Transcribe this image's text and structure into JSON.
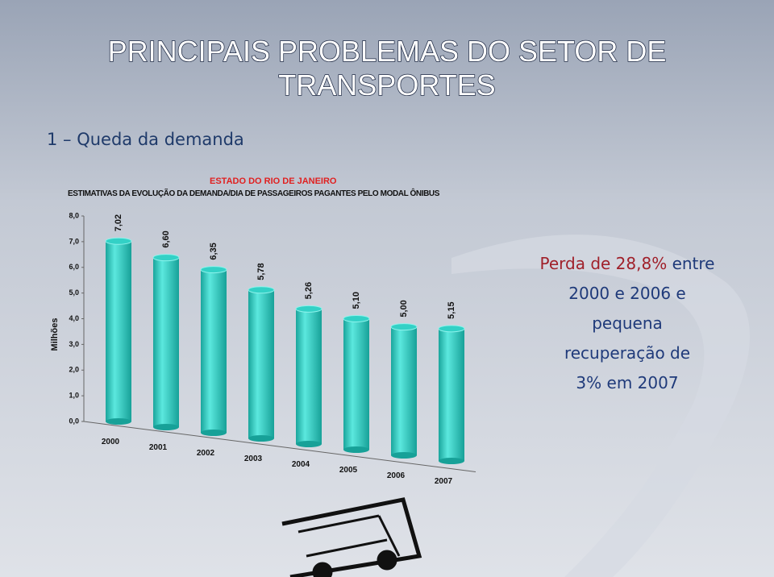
{
  "slide": {
    "title_lines": [
      "PRINCIPAIS PROBLEMAS DO SETOR DE",
      "TRANSPORTES"
    ],
    "subtitle": "1 – Queda da demanda",
    "note": {
      "highlight": "Perda de 28,8%",
      "lines": [
        "entre",
        "2000 e 2006 e",
        "pequena",
        "recuperação de",
        "3% em 2007"
      ]
    }
  },
  "chart_data": {
    "type": "bar",
    "title": "ESTADO DO RIO DE JANEIRO",
    "subtitle": "ESTIMATIVAS DA EVOLUÇÃO DA DEMANDA/DIA DE PASSAGEIROS PAGANTES PELO MODAL ÔNIBUS",
    "y_label": "Milhões",
    "categories": [
      "2000",
      "2001",
      "2002",
      "2003",
      "2004",
      "2005",
      "2006",
      "2007"
    ],
    "values": [
      7.02,
      6.6,
      6.35,
      5.78,
      5.26,
      5.1,
      5.0,
      5.15
    ],
    "value_labels": [
      "7,02",
      "6,60",
      "6,35",
      "5,78",
      "5,26",
      "5,10",
      "5,00",
      "5,15"
    ],
    "color": "#33d1c6",
    "ylim": [
      0,
      8
    ],
    "yticks": [
      {
        "value": 0,
        "label": "0,0"
      },
      {
        "value": 1,
        "label": "1,0"
      },
      {
        "value": 2,
        "label": "2,0"
      },
      {
        "value": 3,
        "label": "3,0"
      },
      {
        "value": 4,
        "label": "4,0"
      },
      {
        "value": 5,
        "label": "5,0"
      },
      {
        "value": 6,
        "label": "6,0"
      },
      {
        "value": 7,
        "label": "7,0"
      },
      {
        "value": 8,
        "label": "8,0"
      }
    ]
  }
}
